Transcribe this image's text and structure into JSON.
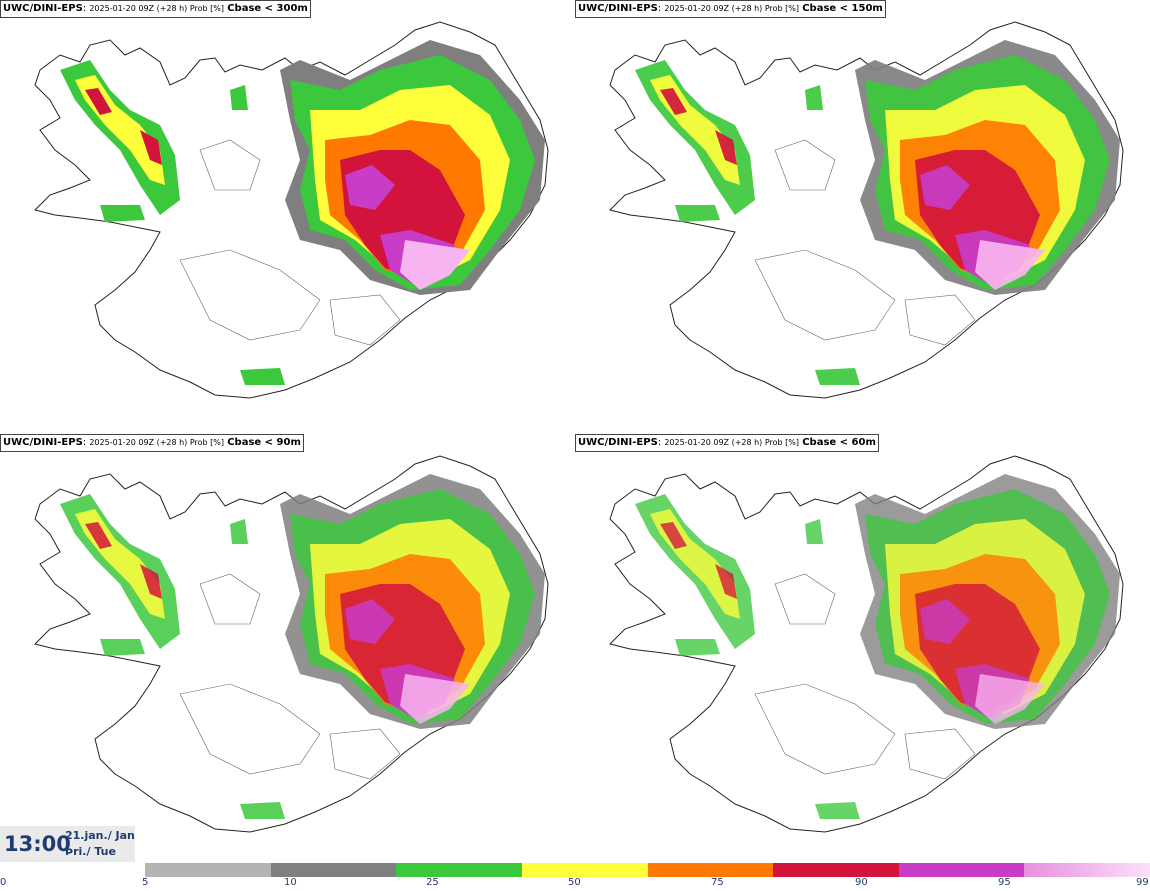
{
  "panels": [
    {
      "model": "UWC/DINI-EPS",
      "run": "2025-01-20 09Z (+28 h) Prob [%]",
      "variable": "Cbase < 300m"
    },
    {
      "model": "UWC/DINI-EPS",
      "run": "2025-01-20 09Z (+28 h) Prob [%]",
      "variable": "Cbase < 150m"
    },
    {
      "model": "UWC/DINI-EPS",
      "run": "2025-01-20 09Z (+28 h) Prob [%]",
      "variable": "Cbase < 90m"
    },
    {
      "model": "UWC/DINI-EPS",
      "run": "2025-01-20 09Z (+28 h) Prob [%]",
      "variable": "Cbase < 60m"
    }
  ],
  "time": {
    "hour": "13:00",
    "date_line1": "21.jan./ Jan",
    "date_line2": "Þri./ Tue"
  },
  "legend": {
    "ticks": [
      "0",
      "5",
      "10",
      "25",
      "50",
      "75",
      "90",
      "95",
      "99"
    ],
    "colors": [
      "#ffffff",
      "#b4b4b4",
      "#7f7f7f",
      "#3cc83c",
      "#ffff3c",
      "#ff7800",
      "#d2143c",
      "#c83cc8",
      "#f8b4f0"
    ]
  }
}
